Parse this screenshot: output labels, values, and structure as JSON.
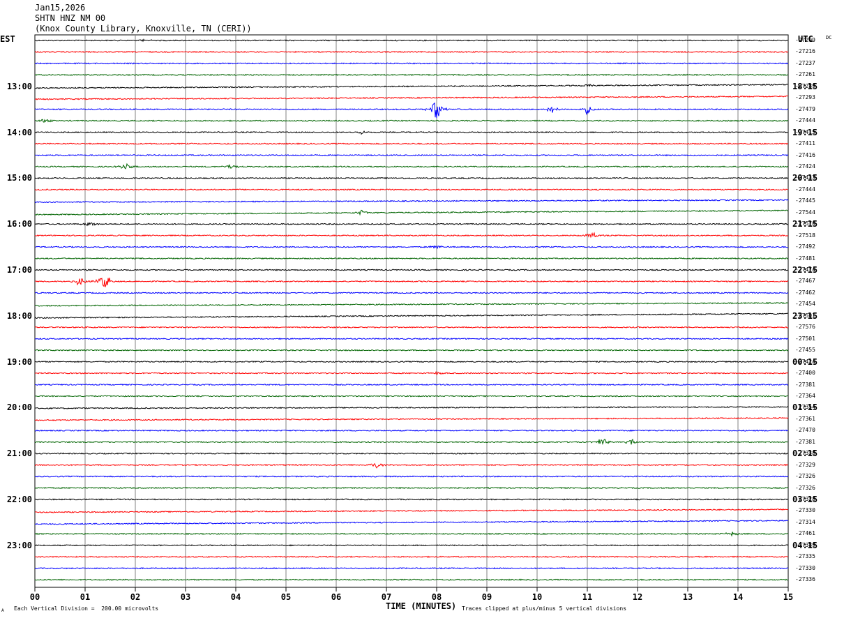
{
  "header": {
    "date": "Jan15,2026",
    "station": "SHTN HNZ NM 00",
    "location": "(Knox County Library, Knoxville, TN (CERI))"
  },
  "corner_left": "EST",
  "corner_right": "UTC",
  "corner_right_small": "DC",
  "footer": {
    "scale": "Each Vertical Division =  200.00 microvolts",
    "clip": "Traces clipped at plus/minus 5 vertical divisions",
    "symbol": "A"
  },
  "colors": {
    "black": "#000000",
    "red": "#ff0000",
    "blue": "#0000ff",
    "green": "#006400",
    "grid": "#808080"
  },
  "chart_data": {
    "type": "line",
    "xlabel": "TIME (MINUTES)",
    "xlim": [
      0,
      15
    ],
    "x_ticks": [
      "00",
      "01",
      "02",
      "03",
      "04",
      "05",
      "06",
      "07",
      "08",
      "09",
      "10",
      "11",
      "12",
      "13",
      "14",
      "15"
    ],
    "trace_minutes_each": 15,
    "left_hour_labels": [
      "13:00",
      "14:00",
      "15:00",
      "16:00",
      "17:00",
      "18:00",
      "19:00",
      "20:00",
      "21:00",
      "22:00",
      "23:00"
    ],
    "right_hour_labels": [
      "18:15",
      "19:15",
      "20:15",
      "21:15",
      "22:15",
      "23:15",
      "00:15",
      "01:15",
      "02:15",
      "03:15",
      "04:15"
    ],
    "trace_color_cycle": [
      "black",
      "red",
      "blue",
      "green"
    ],
    "trace_dc_values": [
      "-27209",
      "-27216",
      "-27237",
      "-27261",
      "-27289",
      "-27293",
      "-27479",
      "-27444",
      "-27415",
      "-27411",
      "-27416",
      "-27424",
      "-27433",
      "-27444",
      "-27445",
      "-27544",
      "-27570",
      "-27518",
      "-27492",
      "-27481",
      "-27474",
      "-27467",
      "-27462",
      "-27454",
      "-27501",
      "-27576",
      "-27501",
      "-27455",
      "-27424",
      "-27400",
      "-27381",
      "-27364",
      "-27354",
      "-27361",
      "-27470",
      "-27381",
      "-27338",
      "-27329",
      "-27326",
      "-27326",
      "-27328",
      "-27330",
      "-27314",
      "-27461",
      "-27389",
      "-27335",
      "-27330",
      "-27336"
    ],
    "events": [
      {
        "trace": 0,
        "minute": 2.2,
        "amplitude": 0.3
      },
      {
        "trace": 4,
        "minute": 11.0,
        "amplitude": 0.3
      },
      {
        "trace": 6,
        "minute": 8.0,
        "amplitude": 2.0
      },
      {
        "trace": 6,
        "minute": 11.0,
        "amplitude": 0.9
      },
      {
        "trace": 6,
        "minute": 10.3,
        "amplitude": 0.8
      },
      {
        "trace": 7,
        "minute": 0.2,
        "amplitude": 0.4
      },
      {
        "trace": 8,
        "minute": 6.5,
        "amplitude": 0.4
      },
      {
        "trace": 11,
        "minute": 1.8,
        "amplitude": 0.6
      },
      {
        "trace": 11,
        "minute": 3.9,
        "amplitude": 0.5
      },
      {
        "trace": 15,
        "minute": 6.5,
        "amplitude": 0.5
      },
      {
        "trace": 16,
        "minute": 1.1,
        "amplitude": 0.4
      },
      {
        "trace": 17,
        "minute": 11.1,
        "amplitude": 0.6
      },
      {
        "trace": 18,
        "minute": 8.0,
        "amplitude": 0.4
      },
      {
        "trace": 21,
        "minute": 0.9,
        "amplitude": 1.0
      },
      {
        "trace": 21,
        "minute": 1.4,
        "amplitude": 1.6
      },
      {
        "trace": 29,
        "minute": 8.0,
        "amplitude": 0.3
      },
      {
        "trace": 35,
        "minute": 11.3,
        "amplitude": 0.8
      },
      {
        "trace": 35,
        "minute": 11.9,
        "amplitude": 0.5
      },
      {
        "trace": 37,
        "minute": 6.8,
        "amplitude": 0.6
      },
      {
        "trace": 43,
        "minute": 13.9,
        "amplitude": 0.5
      }
    ]
  }
}
